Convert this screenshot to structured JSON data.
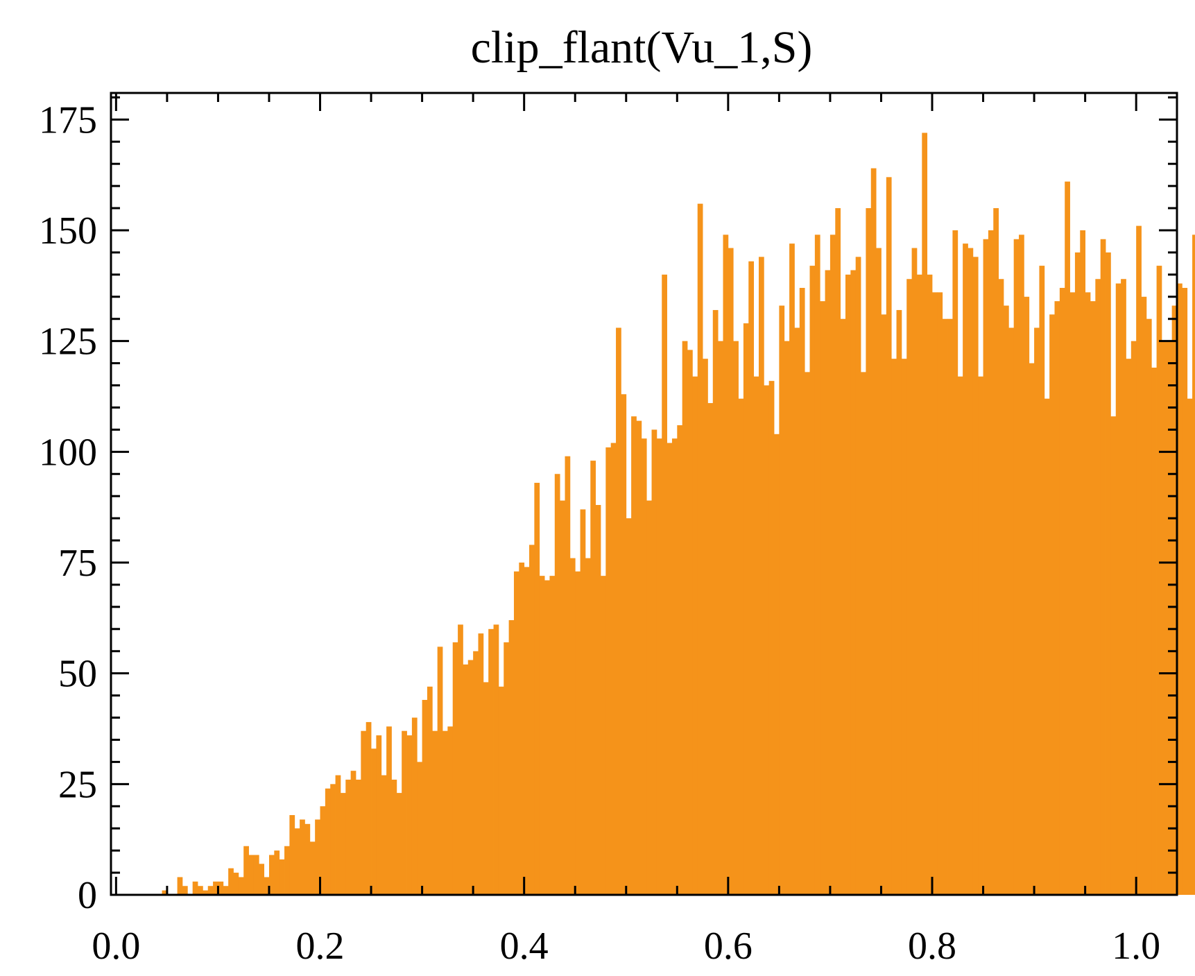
{
  "chart_data": {
    "type": "bar",
    "title": "clip_flant(Vu_1,S)",
    "xlabel": "",
    "ylabel": "",
    "xlim": [
      -0.005,
      1.04
    ],
    "ylim": [
      0,
      181
    ],
    "bar_color": "#f5931a",
    "x_ticks": [
      {
        "value": 0.0,
        "label": "0.0"
      },
      {
        "value": 0.2,
        "label": "0.2"
      },
      {
        "value": 0.4,
        "label": "0.4"
      },
      {
        "value": 0.6,
        "label": "0.6"
      },
      {
        "value": 0.8,
        "label": "0.8"
      },
      {
        "value": 1.0,
        "label": "1.0"
      }
    ],
    "y_ticks": [
      {
        "value": 0,
        "label": "0"
      },
      {
        "value": 25,
        "label": "25"
      },
      {
        "value": 50,
        "label": "50"
      },
      {
        "value": 75,
        "label": "75"
      },
      {
        "value": 100,
        "label": "100"
      },
      {
        "value": 125,
        "label": "125"
      },
      {
        "value": 150,
        "label": "150"
      },
      {
        "value": 175,
        "label": "175"
      }
    ],
    "bin_start": 0.045,
    "bin_width": 0.005,
    "values": [
      1,
      0,
      0,
      4,
      2,
      0,
      3,
      2,
      1,
      2,
      3,
      3,
      2,
      6,
      5,
      4,
      11,
      9,
      9,
      7,
      4,
      9,
      10,
      8,
      11,
      18,
      15,
      17,
      16,
      12,
      17,
      20,
      24,
      25,
      27,
      23,
      26,
      28,
      26,
      37,
      39,
      33,
      36,
      27,
      38,
      26,
      23,
      37,
      36,
      40,
      30,
      44,
      47,
      37,
      56,
      37,
      38,
      57,
      61,
      52,
      53,
      55,
      59,
      48,
      60,
      61,
      47,
      57,
      62,
      73,
      75,
      74,
      79,
      93,
      72,
      71,
      72,
      95,
      89,
      99,
      76,
      73,
      87,
      76,
      98,
      88,
      72,
      101,
      102,
      128,
      113,
      85,
      108,
      107,
      103,
      89,
      105,
      103,
      140,
      102,
      103,
      106,
      125,
      123,
      117,
      156,
      121,
      111,
      132,
      125,
      149,
      146,
      125,
      112,
      129,
      143,
      117,
      144,
      115,
      116,
      104,
      133,
      125,
      147,
      128,
      137,
      118,
      142,
      149,
      134,
      141,
      149,
      155,
      130,
      140,
      141,
      144,
      118,
      155,
      164,
      146,
      131,
      162,
      121,
      132,
      121,
      139,
      146,
      140,
      172,
      140,
      136,
      136,
      130,
      130,
      150,
      117,
      147,
      146,
      144,
      117,
      148,
      150,
      155,
      139,
      133,
      128,
      148,
      149,
      135,
      120,
      128,
      142,
      112,
      131,
      134,
      137,
      161,
      136,
      145,
      150,
      136,
      134,
      139,
      148,
      145,
      108,
      138,
      139,
      121,
      125,
      151,
      135,
      130,
      119,
      142,
      125,
      125,
      133,
      138,
      137,
      112,
      149,
      110,
      129,
      113,
      112,
      117,
      117,
      110,
      111,
      116,
      121,
      120,
      122,
      122,
      120,
      113,
      109,
      112,
      100,
      106,
      109,
      111,
      133,
      133,
      114,
      111,
      115,
      92,
      118,
      113,
      110,
      109,
      113,
      105,
      103,
      84,
      102,
      102,
      60,
      101,
      93,
      102,
      59,
      84,
      79,
      76,
      94,
      60,
      51,
      86,
      78,
      81,
      63,
      22,
      41,
      47,
      38,
      16,
      0
    ]
  }
}
